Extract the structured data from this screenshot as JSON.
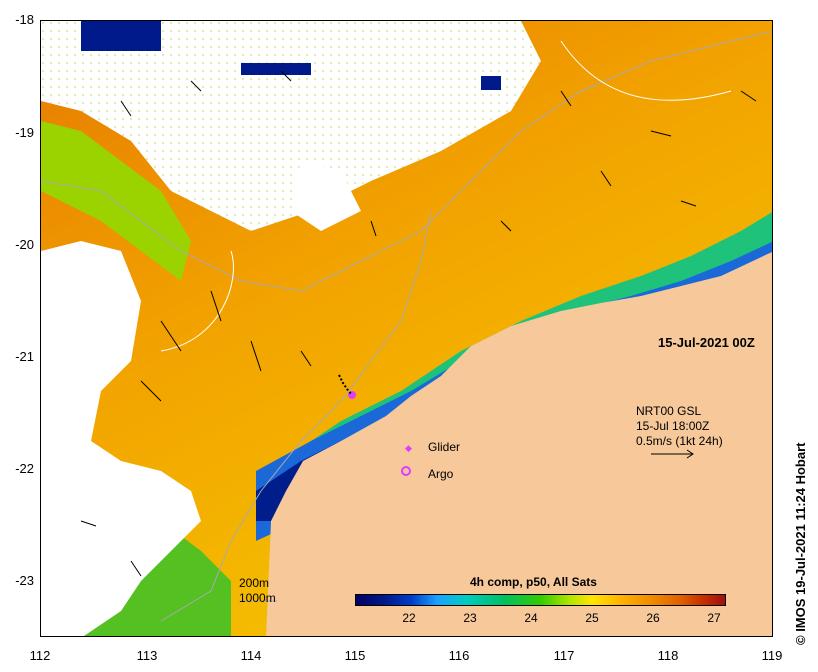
{
  "map": {
    "date_label": "15-Jul-2021 00Z",
    "nrt": {
      "line1": "NRT00 GSL",
      "line2": "15-Jul 18:00Z",
      "line3": "0.5m/s (1kt 24h)"
    },
    "legend": {
      "glider": "Glider",
      "argo": "Argo"
    },
    "depth_labels": {
      "d200": "200m",
      "d1000": "1000m"
    },
    "credit": "© IMOS 19-Jul-2021 11:24 Hobart",
    "lat_ticks": [
      "-18",
      "-19",
      "-20",
      "-21",
      "-22",
      "-23"
    ],
    "lon_ticks": [
      "112",
      "113",
      "114",
      "115",
      "116",
      "117",
      "118",
      "119"
    ],
    "colors": {
      "land": "#f6c89a",
      "glider": "#e03cff",
      "argo": "#e03cff"
    }
  },
  "colorbar": {
    "title": "4h comp, p50, All Sats",
    "ticks": [
      "22",
      "23",
      "24",
      "25",
      "26",
      "27"
    ],
    "range": [
      21.3,
      27.2
    ]
  }
}
